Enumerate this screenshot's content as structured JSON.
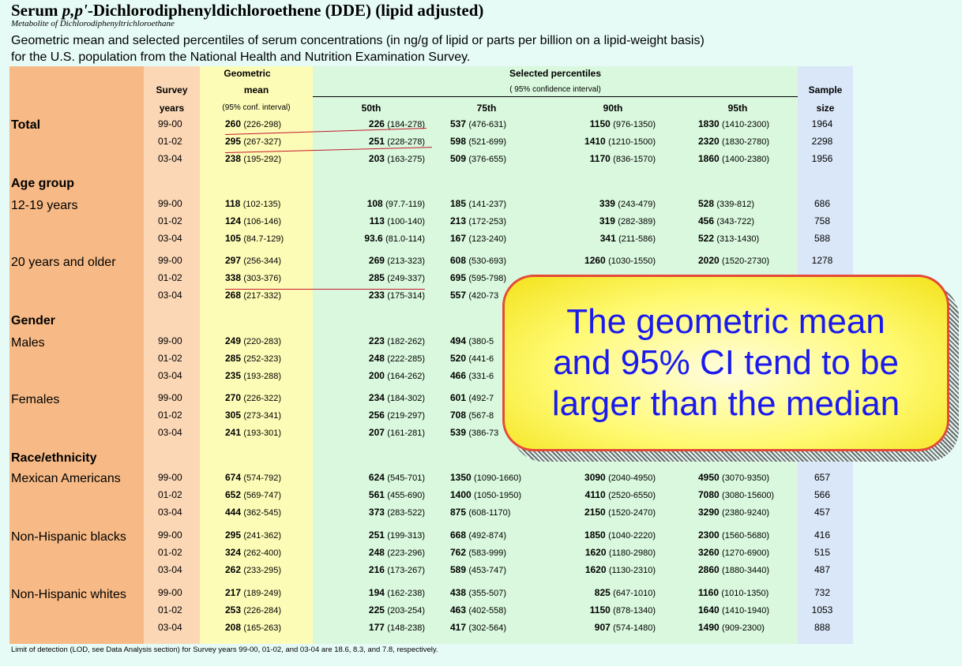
{
  "title": {
    "prefix": "Serum ",
    "italic": "p,p'",
    "rest": "-Dichlorodiphenyldichloroethene (DDE)  (lipid adjusted)"
  },
  "subtitle": "Metabolite of Dichlorodiphenyltrichloroethane",
  "description": [
    "Geometric mean and selected percentiles of serum concentrations (in ng/g of lipid or parts per billion on a lipid-weight basis)",
    "for the U.S. population from the National Health and Nutrition Examination Survey."
  ],
  "headers": {
    "survey": "Survey",
    "years": "years",
    "geometric": "Geometric",
    "mean": "mean",
    "conf": "(95% conf. interval)",
    "selected": "Selected percentiles",
    "ci95": "( 95% confidence interval)",
    "p50": "50th",
    "p75": "75th",
    "p90": "90th",
    "p95": "95th",
    "sample": "Sample",
    "size": "size"
  },
  "sections": [
    {
      "label": "Age group"
    },
    {
      "label": "Gender"
    },
    {
      "label": "Race/ethnicity"
    }
  ],
  "groups": [
    {
      "label": "Total",
      "bold": true,
      "rows": [
        {
          "year": "99-00",
          "geo": "260",
          "geo_ci": "(226-298)",
          "p50": "226",
          "p50_ci": "(184-278)",
          "p75": "537",
          "p75_ci": "(476-631)",
          "p90": "1150",
          "p90_ci": "(976-1350)",
          "p95": "1830",
          "p95_ci": "(1410-2300)",
          "n": "1964"
        },
        {
          "year": "01-02",
          "geo": "295",
          "geo_ci": "(267-327)",
          "p50": "251",
          "p50_ci": "(228-278)",
          "p75": "598",
          "p75_ci": "(521-699)",
          "p90": "1410",
          "p90_ci": "(1210-1500)",
          "p95": "2320",
          "p95_ci": "(1830-2780)",
          "n": "2298"
        },
        {
          "year": "03-04",
          "geo": "238",
          "geo_ci": "(195-292)",
          "p50": "203",
          "p50_ci": "(163-275)",
          "p75": "509",
          "p75_ci": "(376-655)",
          "p90": "1170",
          "p90_ci": "(836-1570)",
          "p95": "1860",
          "p95_ci": "(1400-2380)",
          "n": "1956"
        }
      ]
    },
    {
      "label": "12-19 years",
      "bold": false,
      "rows": [
        {
          "year": "99-00",
          "geo": "118",
          "geo_ci": "(102-135)",
          "p50": "108",
          "p50_ci": "(97.7-119)",
          "p75": "185",
          "p75_ci": "(141-237)",
          "p90": "339",
          "p90_ci": "(243-479)",
          "p95": "528",
          "p95_ci": "(339-812)",
          "n": "686"
        },
        {
          "year": "01-02",
          "geo": "124",
          "geo_ci": "(106-146)",
          "p50": "113",
          "p50_ci": "(100-140)",
          "p75": "213",
          "p75_ci": "(172-253)",
          "p90": "319",
          "p90_ci": "(282-389)",
          "p95": "456",
          "p95_ci": "(343-722)",
          "n": "758"
        },
        {
          "year": "03-04",
          "geo": "105",
          "geo_ci": "(84.7-129)",
          "p50": "93.6",
          "p50_ci": "(81.0-114)",
          "p75": "167",
          "p75_ci": "(123-240)",
          "p90": "341",
          "p90_ci": "(211-586)",
          "p95": "522",
          "p95_ci": "(313-1430)",
          "n": "588"
        }
      ]
    },
    {
      "label": "20 years and older",
      "bold": false,
      "rows": [
        {
          "year": "99-00",
          "geo": "297",
          "geo_ci": "(256-344)",
          "p50": "269",
          "p50_ci": "(213-323)",
          "p75": "608",
          "p75_ci": "(530-693)",
          "p90": "1260",
          "p90_ci": "(1030-1550)",
          "p95": "2020",
          "p95_ci": "(1520-2730)",
          "n": "1278"
        },
        {
          "year": "01-02",
          "geo": "338",
          "geo_ci": "(303-376)",
          "p50": "285",
          "p50_ci": "(249-337)",
          "p75": "695",
          "p75_ci": "(595-798)",
          "p90": "",
          "p90_ci": "",
          "p95": "",
          "p95_ci": "",
          "n": ""
        },
        {
          "year": "03-04",
          "geo": "268",
          "geo_ci": "(217-332)",
          "p50": "233",
          "p50_ci": "(175-314)",
          "p75": "557",
          "p75_ci": "(420-73",
          "p90": "",
          "p90_ci": "",
          "p95": "",
          "p95_ci": "",
          "n": ""
        }
      ]
    },
    {
      "label": "Males",
      "bold": false,
      "rows": [
        {
          "year": "99-00",
          "geo": "249",
          "geo_ci": "(220-283)",
          "p50": "223",
          "p50_ci": "(182-262)",
          "p75": "494",
          "p75_ci": "(380-5",
          "p90": "",
          "p90_ci": "",
          "p95": "",
          "p95_ci": "",
          "n": ""
        },
        {
          "year": "01-02",
          "geo": "285",
          "geo_ci": "(252-323)",
          "p50": "248",
          "p50_ci": "(222-285)",
          "p75": "520",
          "p75_ci": "(441-6",
          "p90": "",
          "p90_ci": "",
          "p95": "",
          "p95_ci": "",
          "n": ""
        },
        {
          "year": "03-04",
          "geo": "235",
          "geo_ci": "(193-288)",
          "p50": "200",
          "p50_ci": "(164-262)",
          "p75": "466",
          "p75_ci": "(331-6",
          "p90": "",
          "p90_ci": "",
          "p95": "",
          "p95_ci": "",
          "n": ""
        }
      ]
    },
    {
      "label": "Females",
      "bold": false,
      "rows": [
        {
          "year": "99-00",
          "geo": "270",
          "geo_ci": "(226-322)",
          "p50": "234",
          "p50_ci": "(184-302)",
          "p75": "601",
          "p75_ci": "(492-7",
          "p90": "",
          "p90_ci": "",
          "p95": "",
          "p95_ci": "",
          "n": ""
        },
        {
          "year": "01-02",
          "geo": "305",
          "geo_ci": "(273-341)",
          "p50": "256",
          "p50_ci": "(219-297)",
          "p75": "708",
          "p75_ci": "(567-8",
          "p90": "",
          "p90_ci": "",
          "p95": "",
          "p95_ci": "",
          "n": ""
        },
        {
          "year": "03-04",
          "geo": "241",
          "geo_ci": "(193-301)",
          "p50": "207",
          "p50_ci": "(161-281)",
          "p75": "539",
          "p75_ci": "(386-73",
          "p90": "",
          "p90_ci": "",
          "p95": "",
          "p95_ci": "",
          "n": ""
        }
      ]
    },
    {
      "label": "Mexican Americans",
      "bold": false,
      "rows": [
        {
          "year": "99-00",
          "geo": "674",
          "geo_ci": "(574-792)",
          "p50": "624",
          "p50_ci": "(545-701)",
          "p75": "1350",
          "p75_ci": "(1090-1660)",
          "p90": "3090",
          "p90_ci": "(2040-4950)",
          "p95": "4950",
          "p95_ci": "(3070-9350)",
          "n": "657"
        },
        {
          "year": "01-02",
          "geo": "652",
          "geo_ci": "(569-747)",
          "p50": "561",
          "p50_ci": "(455-690)",
          "p75": "1400",
          "p75_ci": "(1050-1950)",
          "p90": "4110",
          "p90_ci": "(2520-6550)",
          "p95": "7080",
          "p95_ci": "(3080-15600)",
          "n": "566"
        },
        {
          "year": "03-04",
          "geo": "444",
          "geo_ci": "(362-545)",
          "p50": "373",
          "p50_ci": "(283-522)",
          "p75": "875",
          "p75_ci": "(608-1170)",
          "p90": "2150",
          "p90_ci": "(1520-2470)",
          "p95": "3290",
          "p95_ci": "(2380-9240)",
          "n": "457"
        }
      ]
    },
    {
      "label": "Non-Hispanic blacks",
      "bold": false,
      "rows": [
        {
          "year": "99-00",
          "geo": "295",
          "geo_ci": "(241-362)",
          "p50": "251",
          "p50_ci": "(199-313)",
          "p75": "668",
          "p75_ci": "(492-874)",
          "p90": "1850",
          "p90_ci": "(1040-2220)",
          "p95": "2300",
          "p95_ci": "(1560-5680)",
          "n": "416"
        },
        {
          "year": "01-02",
          "geo": "324",
          "geo_ci": "(262-400)",
          "p50": "248",
          "p50_ci": "(223-296)",
          "p75": "762",
          "p75_ci": "(583-999)",
          "p90": "1620",
          "p90_ci": "(1180-2980)",
          "p95": "3260",
          "p95_ci": "(1270-6900)",
          "n": "515"
        },
        {
          "year": "03-04",
          "geo": "262",
          "geo_ci": "(233-295)",
          "p50": "216",
          "p50_ci": "(173-267)",
          "p75": "589",
          "p75_ci": "(453-747)",
          "p90": "1620",
          "p90_ci": "(1130-2310)",
          "p95": "2860",
          "p95_ci": "(1880-3440)",
          "n": "487"
        }
      ]
    },
    {
      "label": "Non-Hispanic whites",
      "bold": false,
      "rows": [
        {
          "year": "99-00",
          "geo": "217",
          "geo_ci": "(189-249)",
          "p50": "194",
          "p50_ci": "(162-238)",
          "p75": "438",
          "p75_ci": "(355-507)",
          "p90": "825",
          "p90_ci": "(647-1010)",
          "p95": "1160",
          "p95_ci": "(1010-1350)",
          "n": "732"
        },
        {
          "year": "01-02",
          "geo": "253",
          "geo_ci": "(226-284)",
          "p50": "225",
          "p50_ci": "(203-254)",
          "p75": "463",
          "p75_ci": "(402-558)",
          "p90": "1150",
          "p90_ci": "(878-1340)",
          "p95": "1640",
          "p95_ci": "(1410-1940)",
          "n": "1053"
        },
        {
          "year": "03-04",
          "geo": "208",
          "geo_ci": "(165-263)",
          "p50": "177",
          "p50_ci": "(148-238)",
          "p75": "417",
          "p75_ci": "(302-564)",
          "p90": "907",
          "p90_ci": "(574-1480)",
          "p95": "1490",
          "p95_ci": "(909-2300)",
          "n": "888"
        }
      ]
    }
  ],
  "footnote": "Limit of detection (LOD, see Data Analysis section) for Survey years 99-00, 01-02, and 03-04 are 18.6, 8.3, and 7.8, respectively.",
  "callout": {
    "text": "The geometric mean\nand 95% CI tend to be\nlarger than the median",
    "text_color": "#1a1aee",
    "fill_color": "#fffa73",
    "border_color": "#e34a3a"
  },
  "colors": {
    "group_column": "#f7ba86",
    "years_column": "#fbd7b6",
    "geometric_column": "#fdfcb7",
    "percentile_columns": "#d9f8dd",
    "sample_column": "#dae7f8",
    "annotation_lines": "#c4182a"
  }
}
